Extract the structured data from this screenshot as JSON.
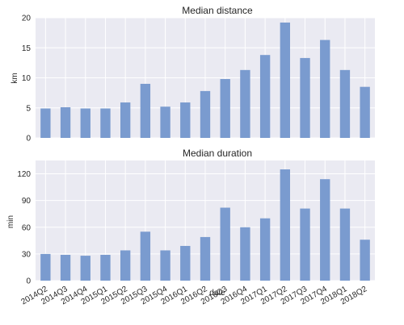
{
  "chart_data": [
    {
      "type": "bar",
      "title": "Median distance",
      "xlabel": "",
      "ylabel": "km",
      "categories": [
        "2014Q2",
        "2014Q3",
        "2014Q4",
        "2015Q1",
        "2015Q2",
        "2015Q3",
        "2015Q4",
        "2016Q1",
        "2016Q2",
        "2016Q3",
        "2016Q4",
        "2017Q1",
        "2017Q2",
        "2017Q3",
        "2017Q4",
        "2018Q1",
        "2018Q2"
      ],
      "values": [
        4.9,
        5.1,
        4.9,
        4.9,
        5.9,
        9.0,
        5.2,
        5.9,
        7.8,
        9.8,
        11.3,
        13.8,
        19.2,
        13.3,
        16.3,
        11.3,
        8.5
      ],
      "ylim": [
        0,
        20
      ],
      "yticks": [
        0,
        5,
        10,
        15,
        20
      ],
      "grid": true,
      "show_xticklabels": false,
      "color": "#7a9bcf"
    },
    {
      "type": "bar",
      "title": "Median duration",
      "xlabel": "date",
      "ylabel": "min",
      "categories": [
        "2014Q2",
        "2014Q3",
        "2014Q4",
        "2015Q1",
        "2015Q2",
        "2015Q3",
        "2015Q4",
        "2016Q1",
        "2016Q2",
        "2016Q3",
        "2016Q4",
        "2017Q1",
        "2017Q2",
        "2017Q3",
        "2017Q4",
        "2018Q1",
        "2018Q2"
      ],
      "values": [
        30,
        29,
        28,
        29,
        34,
        55,
        34,
        39,
        49,
        82,
        60,
        70,
        125,
        81,
        114,
        81,
        46
      ],
      "ylim": [
        0,
        135
      ],
      "yticks": [
        0,
        30,
        60,
        90,
        120
      ],
      "grid": true,
      "show_xticklabels": true,
      "color": "#7a9bcf"
    }
  ]
}
